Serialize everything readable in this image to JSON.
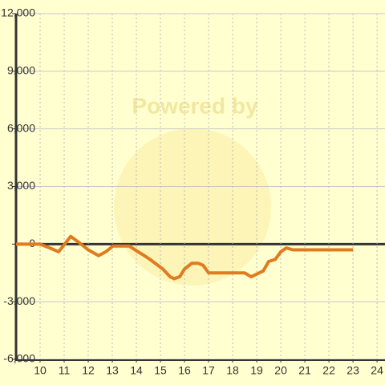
{
  "chart_data": {
    "type": "line",
    "watermark": "Powered by",
    "x": [
      9,
      10,
      10.4,
      10.77,
      11.27,
      11.6,
      12,
      12.43,
      12.73,
      13.03,
      13.27,
      13.7,
      14.07,
      14.33,
      14.57,
      15.1,
      15.4,
      15.57,
      15.8,
      16,
      16.3,
      16.57,
      16.77,
      17,
      18.5,
      18.77,
      19.27,
      19.5,
      19.77,
      20,
      20.23,
      20.5,
      23
    ],
    "series": [
      {
        "color": "#e07b1f",
        "values": [
          0,
          0,
          -200,
          -400,
          400,
          100,
          -300,
          -600,
          -400,
          -100,
          -100,
          -100,
          -400,
          -600,
          -800,
          -1300,
          -1700,
          -1800,
          -1700,
          -1300,
          -1000,
          -1000,
          -1100,
          -1500,
          -1500,
          -1700,
          -1400,
          -900,
          -800,
          -400,
          -200,
          -300,
          -300
        ]
      }
    ],
    "xlim": [
      9,
      24.33
    ],
    "xticks": [
      10,
      11,
      12,
      13,
      14,
      15,
      16,
      17,
      18,
      19,
      20,
      21,
      22,
      23,
      24
    ],
    "ylim": [
      -6000,
      12000
    ],
    "yticks": [
      {
        "value": -6000,
        "label": "-6,000"
      },
      {
        "value": -3000,
        "label": "-3,000"
      },
      0,
      {
        "value": 3000,
        "label": "3,000"
      },
      {
        "value": 6000,
        "label": "6,000"
      },
      {
        "value": 9000,
        "label": "9,000"
      },
      {
        "value": 12000,
        "label": "12,000"
      }
    ],
    "grid": true
  }
}
